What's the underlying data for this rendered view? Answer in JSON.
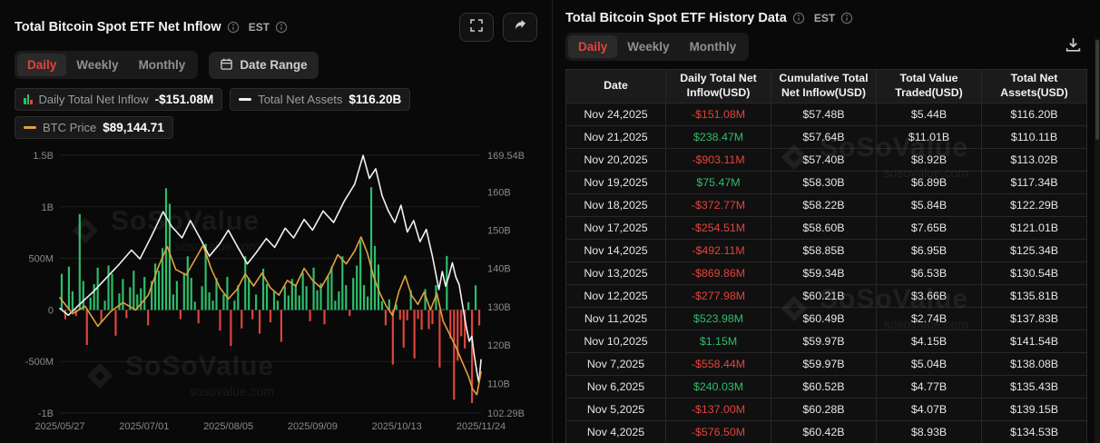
{
  "brand": {
    "watermark_brand": "SoSoValue",
    "watermark_domain": "sosovalue.com"
  },
  "colors": {
    "red": "#e0443c",
    "green": "#2ebd6b",
    "orange": "#e2a13d",
    "line_white": "#f2f2f2"
  },
  "left_panel": {
    "title": "Total Bitcoin Spot ETF Net Inflow",
    "est_label": "EST",
    "tabs": [
      {
        "label": "Daily",
        "active": true
      },
      {
        "label": "Weekly",
        "active": false
      },
      {
        "label": "Monthly",
        "active": false
      }
    ],
    "date_range_label": "Date Range",
    "legend_rows": [
      [
        {
          "name": "Daily Total Net Inflow",
          "value": "-$151.08M",
          "swatch": "bars"
        },
        {
          "name": "Total Net Assets",
          "value": "$116.20B",
          "swatch": "line-white"
        }
      ],
      [
        {
          "name": "BTC Price",
          "value": "$89,144.71",
          "swatch": "line-orange"
        }
      ]
    ]
  },
  "right_panel": {
    "title": "Total Bitcoin Spot ETF History Data",
    "est_label": "EST",
    "tabs": [
      {
        "label": "Daily",
        "active": true
      },
      {
        "label": "Weekly",
        "active": false
      },
      {
        "label": "Monthly",
        "active": false
      }
    ],
    "table": {
      "headers": [
        "Date",
        "Daily Total Net Inflow(USD)",
        "Cumulative Total Net Inflow(USD)",
        "Total Value Traded(USD)",
        "Total Net Assets(USD)"
      ],
      "rows": [
        [
          "Nov 24,2025",
          "-$151.08M",
          "$57.48B",
          "$5.44B",
          "$116.20B"
        ],
        [
          "Nov 21,2025",
          "$238.47M",
          "$57.64B",
          "$11.01B",
          "$110.11B"
        ],
        [
          "Nov 20,2025",
          "-$903.11M",
          "$57.40B",
          "$8.92B",
          "$113.02B"
        ],
        [
          "Nov 19,2025",
          "$75.47M",
          "$58.30B",
          "$6.89B",
          "$117.34B"
        ],
        [
          "Nov 18,2025",
          "-$372.77M",
          "$58.22B",
          "$5.84B",
          "$122.29B"
        ],
        [
          "Nov 17,2025",
          "-$254.51M",
          "$58.60B",
          "$7.65B",
          "$121.01B"
        ],
        [
          "Nov 14,2025",
          "-$492.11M",
          "$58.85B",
          "$6.95B",
          "$125.34B"
        ],
        [
          "Nov 13,2025",
          "-$869.86M",
          "$59.34B",
          "$6.53B",
          "$130.54B"
        ],
        [
          "Nov 12,2025",
          "-$277.98M",
          "$60.21B",
          "$3.66B",
          "$135.81B"
        ],
        [
          "Nov 11,2025",
          "$523.98M",
          "$60.49B",
          "$2.74B",
          "$137.83B"
        ],
        [
          "Nov 10,2025",
          "$1.15M",
          "$59.97B",
          "$4.15B",
          "$141.54B"
        ],
        [
          "Nov 7,2025",
          "-$558.44M",
          "$59.97B",
          "$5.04B",
          "$138.08B"
        ],
        [
          "Nov 6,2025",
          "$240.03M",
          "$60.52B",
          "$4.77B",
          "$135.43B"
        ],
        [
          "Nov 5,2025",
          "-$137.00M",
          "$60.28B",
          "$4.07B",
          "$139.15B"
        ],
        [
          "Nov 4,2025",
          "-$576.50M",
          "$60.42B",
          "$8.93B",
          "$134.53B"
        ]
      ]
    }
  },
  "chart_data": {
    "type": "bar+line",
    "title": "Total Bitcoin Spot ETF Net Inflow",
    "legend_position": "top",
    "grid": true,
    "x_labels": [
      "2025/05/27",
      "2025/07/01",
      "2025/08/05",
      "2025/09/09",
      "2025/10/13",
      "2025/11/24"
    ],
    "left_axis": {
      "labels": [
        "1.5B",
        "1B",
        "500M",
        "0",
        "-500M",
        "-1B"
      ],
      "values": [
        1500,
        1000,
        500,
        0,
        -500,
        -1000
      ],
      "range": [
        -1000,
        1500
      ],
      "units": "USD millions"
    },
    "right_axis": {
      "labels": [
        "169.54B",
        "160B",
        "150B",
        "140B",
        "130B",
        "120B",
        "110B",
        "102.29B"
      ],
      "values": [
        169.54,
        160,
        150,
        140,
        130,
        120,
        110,
        102.29
      ],
      "range": [
        102.29,
        169.54
      ],
      "units": "USD billions"
    },
    "bar_series": {
      "name": "Daily Total Net Inflow (USD M, approx.)",
      "values": [
        350,
        -90,
        420,
        180,
        -60,
        930,
        280,
        -340,
        120,
        250,
        410,
        -120,
        90,
        430,
        350,
        -250,
        160,
        300,
        -80,
        220,
        380,
        150,
        210,
        320,
        -150,
        280,
        450,
        380,
        600,
        1180,
        1030,
        150,
        280,
        -90,
        360,
        520,
        310,
        80,
        -130,
        230,
        640,
        170,
        90,
        310,
        -200,
        150,
        320,
        -350,
        90,
        240,
        -180,
        520,
        310,
        -90,
        150,
        -230,
        400,
        250,
        -120,
        180,
        90,
        -310,
        230,
        140,
        300,
        250,
        140,
        360,
        230,
        -110,
        410,
        190,
        260,
        -140,
        330,
        420,
        90,
        180,
        520,
        240,
        -60,
        310,
        430,
        675,
        240,
        130,
        1190,
        620,
        440,
        85,
        -150,
        102,
        -530,
        51,
        -94,
        -366,
        -101,
        190,
        -470,
        -88,
        -191,
        202,
        -186,
        -137,
        240,
        -558,
        1.15,
        524,
        -278,
        -870,
        -492,
        -255,
        -373,
        75,
        -903,
        238,
        -151
      ]
    },
    "line_series": [
      {
        "name": "Total Net Assets (USD B, approx.)",
        "color": "#f2f2f2",
        "axis": [
          102.29,
          169.54
        ],
        "points": [
          [
            0,
            129.6
          ],
          [
            0.02,
            127.8
          ],
          [
            0.05,
            131
          ],
          [
            0.08,
            134
          ],
          [
            0.11,
            137.5
          ],
          [
            0.14,
            141
          ],
          [
            0.17,
            144.8
          ],
          [
            0.19,
            142.5
          ],
          [
            0.22,
            149
          ],
          [
            0.245,
            154.8
          ],
          [
            0.265,
            151
          ],
          [
            0.29,
            148
          ],
          [
            0.31,
            152.5
          ],
          [
            0.335,
            147.5
          ],
          [
            0.355,
            143.2
          ],
          [
            0.38,
            146.5
          ],
          [
            0.4,
            150
          ],
          [
            0.42,
            146
          ],
          [
            0.445,
            141.2
          ],
          [
            0.465,
            144
          ],
          [
            0.49,
            147.8
          ],
          [
            0.51,
            145.5
          ],
          [
            0.535,
            150.5
          ],
          [
            0.555,
            148
          ],
          [
            0.58,
            152.8
          ],
          [
            0.6,
            150
          ],
          [
            0.625,
            155
          ],
          [
            0.65,
            152
          ],
          [
            0.675,
            157.5
          ],
          [
            0.7,
            162
          ],
          [
            0.72,
            169.5
          ],
          [
            0.735,
            163.5
          ],
          [
            0.75,
            166
          ],
          [
            0.765,
            159
          ],
          [
            0.78,
            155
          ],
          [
            0.795,
            152
          ],
          [
            0.81,
            156.5
          ],
          [
            0.825,
            149.5
          ],
          [
            0.84,
            152.5
          ],
          [
            0.855,
            147
          ],
          [
            0.87,
            150.2
          ],
          [
            0.885,
            143
          ],
          [
            0.9,
            134.5
          ],
          [
            0.908,
            139.2
          ],
          [
            0.916,
            135.4
          ],
          [
            0.924,
            138.1
          ],
          [
            0.932,
            141.5
          ],
          [
            0.94,
            137.8
          ],
          [
            0.948,
            135.8
          ],
          [
            0.956,
            130.5
          ],
          [
            0.964,
            125.3
          ],
          [
            0.972,
            121
          ],
          [
            0.978,
            122.3
          ],
          [
            0.984,
            117.3
          ],
          [
            0.99,
            113
          ],
          [
            0.995,
            110.1
          ],
          [
            1,
            116.2
          ]
        ]
      },
      {
        "name": "BTC Price (USD thousands, approx.)",
        "color": "#e2a13d",
        "axis": [
          78,
          148
        ],
        "points": [
          [
            0,
            109.3
          ],
          [
            0.03,
            105
          ],
          [
            0.06,
            107
          ],
          [
            0.09,
            101.6
          ],
          [
            0.12,
            105.5
          ],
          [
            0.15,
            108
          ],
          [
            0.18,
            106
          ],
          [
            0.21,
            110
          ],
          [
            0.235,
            118
          ],
          [
            0.255,
            123.2
          ],
          [
            0.275,
            117
          ],
          [
            0.3,
            115.5
          ],
          [
            0.32,
            119.5
          ],
          [
            0.34,
            123.5
          ],
          [
            0.36,
            117
          ],
          [
            0.38,
            112
          ],
          [
            0.4,
            109
          ],
          [
            0.42,
            111.5
          ],
          [
            0.44,
            115.8
          ],
          [
            0.46,
            112.5
          ],
          [
            0.48,
            116
          ],
          [
            0.5,
            112
          ],
          [
            0.52,
            110
          ],
          [
            0.54,
            114
          ],
          [
            0.56,
            112.5
          ],
          [
            0.58,
            117.3
          ],
          [
            0.6,
            114
          ],
          [
            0.62,
            112
          ],
          [
            0.64,
            116
          ],
          [
            0.66,
            121
          ],
          [
            0.68,
            118.5
          ],
          [
            0.7,
            122
          ],
          [
            0.715,
            125.8
          ],
          [
            0.73,
            121.5
          ],
          [
            0.745,
            115
          ],
          [
            0.76,
            110.5
          ],
          [
            0.775,
            107
          ],
          [
            0.79,
            104.5
          ],
          [
            0.805,
            111
          ],
          [
            0.82,
            115.3
          ],
          [
            0.835,
            110
          ],
          [
            0.85,
            107.5
          ],
          [
            0.865,
            110.8
          ],
          [
            0.88,
            106
          ],
          [
            0.895,
            110.5
          ],
          [
            0.91,
            103
          ],
          [
            0.925,
            99.5
          ],
          [
            0.94,
            96
          ],
          [
            0.955,
            92
          ],
          [
            0.97,
            88
          ],
          [
            0.98,
            84.5
          ],
          [
            0.99,
            83
          ],
          [
            1,
            89.1
          ]
        ]
      }
    ]
  }
}
